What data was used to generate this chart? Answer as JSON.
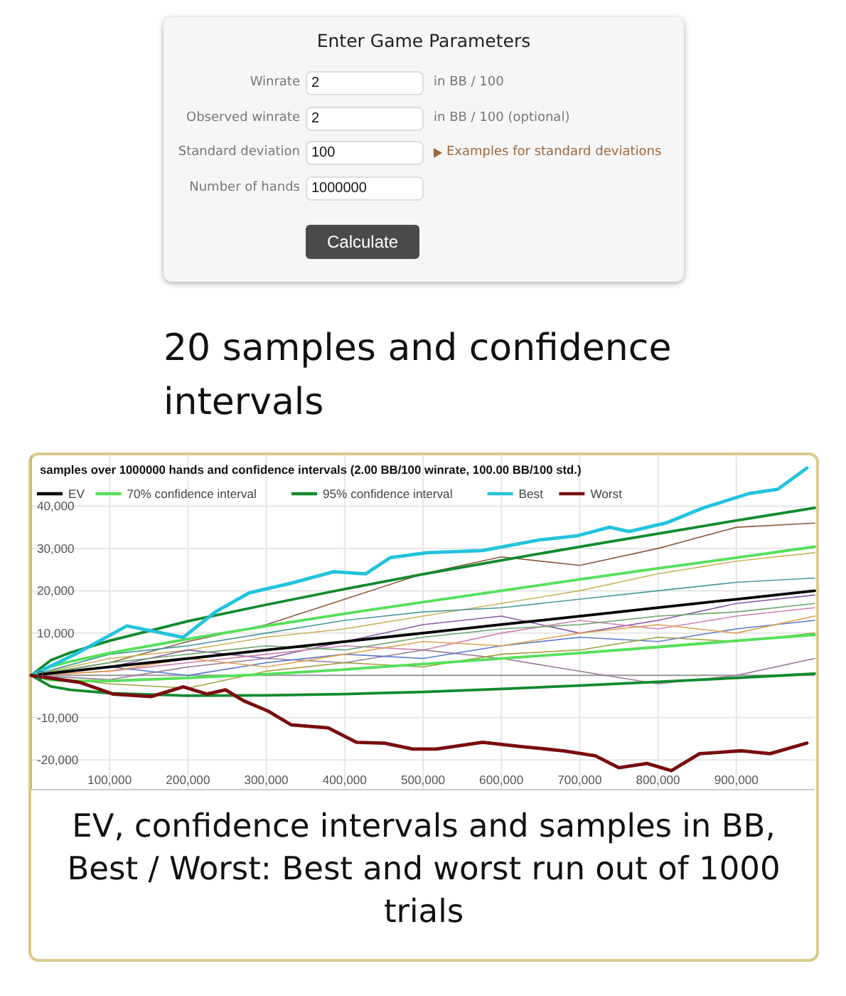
{
  "chart_data": [
    {
      "type": "other",
      "title": "Enter Game Parameters",
      "annotations": [
        "Winrate",
        "Observed winrate",
        "Standard deviation",
        "Number of hands",
        "2",
        "2",
        "100",
        "1000000",
        "in BB / 100",
        "in BB / 100 (optional)",
        "Examples for standard deviations",
        "Calculate"
      ]
    },
    {
      "type": "line",
      "title": "20 samples and confidence intervals",
      "subtitle": "samples over 1000000 hands and confidence intervals (2.00 BB/100 winrate, 100.00 BB/100 std.)",
      "annotations": [
        "EV, confidence intervals and samples in BB, Best / Worst: Best and worst run out of 1000 trials"
      ],
      "xlim": [
        0,
        1000000
      ],
      "ylim": [
        -27000,
        52000
      ],
      "xticks": [
        {
          "value": 100000,
          "label": "100,000"
        },
        {
          "value": 200000,
          "label": "200,000"
        },
        {
          "value": 300000,
          "label": "300,000"
        },
        {
          "value": 400000,
          "label": "400,000"
        },
        {
          "value": 500000,
          "label": "500,000"
        },
        {
          "value": 600000,
          "label": "600,000"
        },
        {
          "value": 700000,
          "label": "700,000"
        },
        {
          "value": 800000,
          "label": "800,000"
        },
        {
          "value": 900000,
          "label": "900,000"
        }
      ],
      "yticks": [
        {
          "value": -20000,
          "label": "-20,000"
        },
        {
          "value": -10000,
          "label": "-10,000"
        },
        0,
        {
          "value": 10000,
          "label": "10,000"
        },
        {
          "value": 20000,
          "label": "20,000"
        },
        {
          "value": 30000,
          "label": "30,000"
        },
        {
          "value": 40000,
          "label": "40,000"
        }
      ],
      "grid": true,
      "legend": "top left",
      "marker": "none",
      "line_style": "solid",
      "series": [
        {
          "color": "#8b5a3c",
          "x": [
            0,
            100000,
            200000,
            300000,
            400000,
            500000,
            600000,
            700000,
            800000,
            900000,
            1000000
          ],
          "values": [
            0,
            3000,
            8000,
            12000,
            18000,
            24000,
            28000,
            26000,
            30000,
            35000,
            36000
          ]
        },
        {
          "color": "#c8b45a",
          "x": [
            0,
            100000,
            200000,
            300000,
            400000,
            500000,
            600000,
            700000,
            800000,
            900000,
            1000000
          ],
          "values": [
            0,
            4000,
            6000,
            9000,
            11000,
            14000,
            17000,
            20000,
            24000,
            27000,
            29000
          ]
        },
        {
          "color": "#4a9a9a",
          "x": [
            0,
            100000,
            200000,
            300000,
            400000,
            500000,
            600000,
            700000,
            800000,
            900000,
            1000000
          ],
          "values": [
            0,
            5000,
            7000,
            10000,
            13000,
            15000,
            16000,
            18000,
            20000,
            22000,
            23000
          ]
        },
        {
          "color": "#8a5aa8",
          "x": [
            0,
            100000,
            200000,
            300000,
            400000,
            500000,
            600000,
            700000,
            800000,
            900000,
            1000000
          ],
          "values": [
            0,
            2000,
            6000,
            4000,
            8000,
            12000,
            14000,
            10000,
            13000,
            17000,
            19000
          ]
        },
        {
          "color": "#d080b0",
          "x": [
            0,
            100000,
            200000,
            300000,
            400000,
            500000,
            600000,
            700000,
            800000,
            900000,
            1000000
          ],
          "values": [
            0,
            1000,
            3000,
            5000,
            7000,
            6000,
            10000,
            13000,
            11000,
            14000,
            16000
          ]
        },
        {
          "color": "#9a7a9a",
          "x": [
            0,
            100000,
            200000,
            300000,
            400000,
            500000,
            600000,
            700000,
            800000,
            900000,
            1000000
          ],
          "values": [
            0,
            -1000,
            2000,
            4000,
            3000,
            6000,
            4000,
            1000,
            -2000,
            0,
            4000
          ]
        },
        {
          "color": "#6aa86a",
          "x": [
            0,
            100000,
            200000,
            300000,
            400000,
            500000,
            600000,
            700000,
            800000,
            900000,
            1000000
          ],
          "values": [
            0,
            3000,
            5000,
            7000,
            6000,
            9000,
            11000,
            12000,
            14000,
            15000,
            17000
          ]
        },
        {
          "color": "#5a7ac8",
          "x": [
            0,
            100000,
            200000,
            300000,
            400000,
            500000,
            600000,
            700000,
            800000,
            900000,
            1000000
          ],
          "values": [
            0,
            2000,
            0,
            3000,
            5000,
            4000,
            7000,
            9000,
            8000,
            11000,
            13000
          ]
        },
        {
          "color": "#e0a050",
          "x": [
            0,
            100000,
            200000,
            300000,
            400000,
            500000,
            600000,
            700000,
            800000,
            900000,
            1000000
          ],
          "values": [
            0,
            1000,
            4000,
            2000,
            5000,
            8000,
            7000,
            10000,
            12000,
            10000,
            14000
          ]
        },
        {
          "color": "#a0a040",
          "x": [
            0,
            100000,
            200000,
            300000,
            400000,
            500000,
            600000,
            700000,
            800000,
            900000,
            1000000
          ],
          "values": [
            0,
            -2000,
            -3000,
            1000,
            3000,
            2000,
            5000,
            6000,
            9000,
            8000,
            10000
          ]
        },
        {
          "name": "EV",
          "color": "#000000",
          "x": [
            0,
            25000,
            50000,
            100000,
            200000,
            300000,
            400000,
            500000,
            600000,
            700000,
            800000,
            900000,
            1000000
          ],
          "values": [
            0,
            500,
            1000,
            2000,
            4000,
            6000,
            8000,
            10000,
            12000,
            14000,
            16000,
            18000,
            20000
          ]
        },
        {
          "name": "70% confidence interval",
          "color": "#55e05a",
          "x": [
            0,
            25000,
            50000,
            100000,
            200000,
            300000,
            400000,
            500000,
            600000,
            700000,
            800000,
            900000,
            1000000
          ],
          "values": [
            0,
            2100,
            3300,
            5300,
            8600,
            11700,
            14600,
            17300,
            20000,
            22700,
            25300,
            27800,
            30400
          ]
        },
        {
          "color": "#55e05a",
          "x": [
            0,
            25000,
            50000,
            100000,
            200000,
            300000,
            400000,
            500000,
            600000,
            700000,
            800000,
            900000,
            1000000
          ],
          "values": [
            0,
            -1100,
            -1300,
            -1300,
            -600,
            300,
            1400,
            2700,
            4000,
            5300,
            6700,
            8200,
            9600
          ]
        },
        {
          "name": "95% confidence interval",
          "color": "#118a2e",
          "x": [
            0,
            25000,
            50000,
            100000,
            200000,
            300000,
            400000,
            500000,
            600000,
            700000,
            800000,
            900000,
            1000000
          ],
          "values": [
            0,
            3600,
            5400,
            8200,
            12800,
            16700,
            20400,
            23900,
            27200,
            30400,
            33500,
            36600,
            39600
          ]
        },
        {
          "color": "#118a2e",
          "x": [
            0,
            25000,
            50000,
            100000,
            200000,
            300000,
            400000,
            500000,
            600000,
            700000,
            800000,
            900000,
            1000000
          ],
          "values": [
            0,
            -2600,
            -3400,
            -4200,
            -4800,
            -4700,
            -4400,
            -3900,
            -3200,
            -2400,
            -1500,
            -600,
            400
          ]
        },
        {
          "name": "Best",
          "color": "#22c3dd",
          "x": [
            0,
            56000,
            122000,
            194000,
            235000,
            278000,
            332000,
            386000,
            427000,
            458000,
            505000,
            576000,
            648000,
            697000,
            738000,
            763000,
            810000,
            858000,
            917000,
            953000,
            990000
          ],
          "values": [
            0,
            5000,
            11700,
            9000,
            15000,
            19500,
            21800,
            24500,
            24000,
            27800,
            29000,
            29500,
            32000,
            33000,
            35000,
            34000,
            36000,
            39600,
            43000,
            44000,
            49000
          ]
        },
        {
          "name": "Worst",
          "color": "#7a0d0d",
          "x": [
            0,
            63000,
            104000,
            153000,
            194000,
            224000,
            248000,
            271000,
            302000,
            332000,
            379000,
            415000,
            451000,
            487000,
            517000,
            576000,
            625000,
            679000,
            720000,
            750000,
            786000,
            817000,
            853000,
            907000,
            943000,
            990000
          ],
          "values": [
            0,
            -1700,
            -4400,
            -5000,
            -2700,
            -4400,
            -3400,
            -6000,
            -8400,
            -11700,
            -12400,
            -15800,
            -16000,
            -17400,
            -17400,
            -15800,
            -16800,
            -17800,
            -19000,
            -21800,
            -20800,
            -22500,
            -18500,
            -17800,
            -18500,
            -16000
          ]
        }
      ]
    }
  ]
}
